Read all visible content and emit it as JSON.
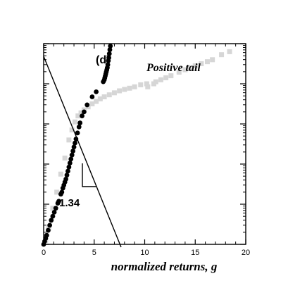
{
  "chart_data": {
    "type": "scatter",
    "panel_label": "(d)",
    "title": "Positive tail",
    "xlabel": "normalized returns, g",
    "ylabel": "",
    "xlim": [
      0,
      20
    ],
    "x_ticks": [
      0,
      5,
      10,
      15,
      20
    ],
    "y_scale": "log",
    "y_decades_shown": 5,
    "grid": false,
    "legend": "none",
    "slope_annotation": "1.34",
    "colors": {
      "dark": "#000000",
      "light": "#d6d6d6",
      "axis": "#000000"
    },
    "series": [
      {
        "style": "light-squares",
        "points": [
          [
            0.2,
            0.98
          ],
          [
            0.5,
            0.92
          ],
          [
            0.9,
            0.82
          ],
          [
            1.3,
            0.74
          ],
          [
            1.7,
            0.65
          ],
          [
            2.1,
            0.57
          ],
          [
            2.5,
            0.48
          ],
          [
            2.8,
            0.43
          ],
          [
            3.1,
            0.39
          ],
          [
            3.4,
            0.36
          ],
          [
            3.7,
            0.345
          ],
          [
            4.0,
            0.33
          ],
          [
            4.4,
            0.315
          ],
          [
            4.8,
            0.3
          ],
          [
            5.2,
            0.288
          ],
          [
            5.6,
            0.275
          ],
          [
            6.0,
            0.265
          ],
          [
            6.5,
            0.255
          ],
          [
            7.0,
            0.245
          ],
          [
            7.5,
            0.235
          ],
          [
            8.0,
            0.228
          ],
          [
            8.5,
            0.222
          ],
          [
            9.0,
            0.215
          ],
          [
            9.6,
            0.205
          ],
          [
            10.2,
            0.2
          ],
          [
            10.9,
            0.2
          ],
          [
            10.3,
            0.215
          ],
          [
            11.1,
            0.19
          ],
          [
            11.6,
            0.18
          ],
          [
            12.1,
            0.17
          ],
          [
            12.6,
            0.16
          ],
          [
            13.4,
            0.142
          ],
          [
            14.0,
            0.13
          ],
          [
            14.4,
            0.12
          ],
          [
            15.0,
            0.11
          ],
          [
            15.6,
            0.1
          ],
          [
            16.2,
            0.09
          ],
          [
            16.7,
            0.08
          ],
          [
            17.6,
            0.055
          ],
          [
            18.4,
            0.04
          ]
        ]
      },
      {
        "style": "dark-circles",
        "points": [
          [
            0.0,
            1.0
          ],
          [
            0.1,
            0.985
          ],
          [
            0.2,
            0.97
          ],
          [
            0.3,
            0.955
          ],
          [
            0.45,
            0.93
          ],
          [
            0.6,
            0.905
          ],
          [
            0.75,
            0.88
          ],
          [
            0.9,
            0.86
          ],
          [
            1.05,
            0.84
          ],
          [
            1.2,
            0.82
          ],
          [
            1.4,
            0.795
          ],
          [
            1.5,
            0.785
          ],
          [
            1.7,
            0.75
          ],
          [
            1.8,
            0.74
          ],
          [
            1.9,
            0.72
          ],
          [
            2.0,
            0.705
          ],
          [
            2.1,
            0.69
          ],
          [
            2.2,
            0.675
          ],
          [
            2.3,
            0.655
          ],
          [
            2.4,
            0.635
          ],
          [
            2.5,
            0.615
          ],
          [
            2.6,
            0.595
          ],
          [
            2.7,
            0.575
          ],
          [
            2.8,
            0.555
          ],
          [
            2.9,
            0.535
          ],
          [
            3.0,
            0.515
          ],
          [
            3.1,
            0.495
          ],
          [
            3.2,
            0.475
          ],
          [
            3.35,
            0.445
          ],
          [
            3.5,
            0.415
          ],
          [
            3.6,
            0.395
          ],
          [
            3.8,
            0.36
          ],
          [
            4.0,
            0.34
          ],
          [
            4.3,
            0.305
          ],
          [
            4.8,
            0.265
          ],
          [
            5.2,
            0.24
          ],
          [
            5.9,
            0.19
          ],
          [
            6.0,
            0.18
          ],
          [
            6.05,
            0.17
          ],
          [
            6.1,
            0.16
          ],
          [
            6.15,
            0.15
          ],
          [
            6.2,
            0.14
          ],
          [
            6.25,
            0.13
          ],
          [
            6.3,
            0.12
          ],
          [
            6.35,
            0.105
          ],
          [
            6.4,
            0.085
          ],
          [
            6.45,
            0.07
          ],
          [
            6.5,
            0.05
          ],
          [
            6.55,
            0.03
          ],
          [
            6.6,
            0.012
          ]
        ]
      }
    ]
  }
}
